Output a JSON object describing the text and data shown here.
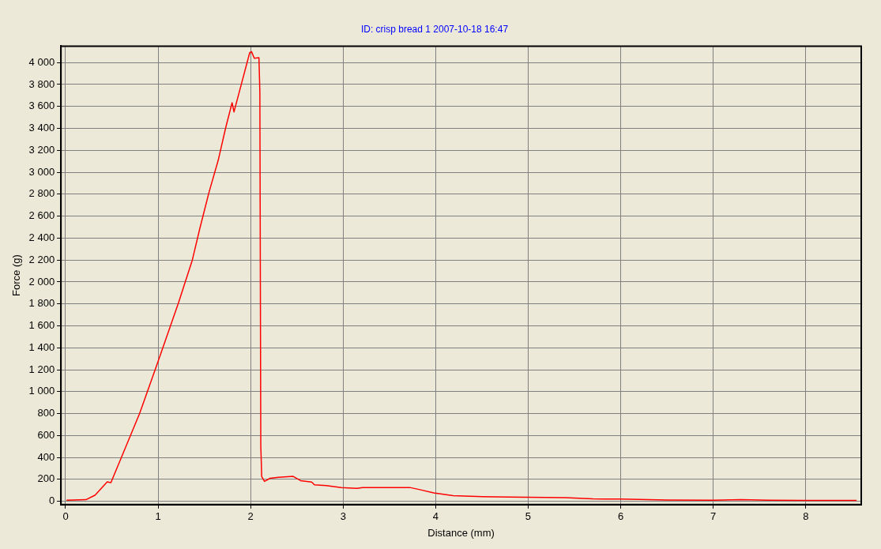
{
  "chart_data": {
    "type": "line",
    "title": "ID: crisp bread 1 2007-10-18 16:47",
    "xlabel": "Distance (mm)",
    "ylabel": "Force (g)",
    "series": [
      {
        "color": "#ff0000",
        "x": [
          0.01,
          0.22,
          0.32,
          0.45,
          0.49,
          0.6,
          0.8,
          1.0,
          1.22,
          1.37,
          1.45,
          1.55,
          1.65,
          1.73,
          1.8,
          1.82,
          1.88,
          1.99,
          2.01,
          2.04,
          2.09,
          2.1,
          2.11,
          2.12,
          2.15,
          2.21,
          2.3,
          2.46,
          2.54,
          2.66,
          2.69,
          2.82,
          2.98,
          3.15,
          3.21,
          3.72,
          3.82,
          3.98,
          4.19,
          4.51,
          4.8,
          5.4,
          5.7,
          6.0,
          6.5,
          7.0,
          7.3,
          7.6,
          8.0,
          8.55
        ],
        "values": [
          10,
          15,
          57,
          178,
          170,
          393,
          800,
          1275,
          1808,
          2200,
          2484,
          2816,
          3110,
          3404,
          3634,
          3550,
          3740,
          4090,
          4100,
          4040,
          4045,
          3727,
          507,
          225,
          182,
          210,
          219,
          227,
          189,
          176,
          151,
          143,
          126,
          118,
          126,
          126,
          108,
          76,
          51,
          43,
          38,
          33,
          22,
          20,
          12,
          10,
          15,
          10,
          8,
          8
        ]
      }
    ],
    "xlim": [
      -0.05,
      8.6
    ],
    "ylim": [
      -30,
      4150
    ],
    "xticks": [
      0,
      1,
      2,
      3,
      4,
      5,
      6,
      7,
      8
    ],
    "yticks": [
      0,
      200,
      400,
      600,
      800,
      {
        "value": 1000,
        "label": "1 000"
      },
      {
        "value": 1200,
        "label": "1 200"
      },
      {
        "value": 1400,
        "label": "1 400"
      },
      {
        "value": 1600,
        "label": "1 600"
      },
      {
        "value": 1800,
        "label": "1 800"
      },
      {
        "value": 2000,
        "label": "2 000"
      },
      {
        "value": 2200,
        "label": "2 200"
      },
      {
        "value": 2400,
        "label": "2 400"
      },
      {
        "value": 2600,
        "label": "2 600"
      },
      {
        "value": 2800,
        "label": "2 800"
      },
      {
        "value": 3000,
        "label": "3 000"
      },
      {
        "value": 3200,
        "label": "3 200"
      },
      {
        "value": 3400,
        "label": "3 400"
      },
      {
        "value": 3600,
        "label": "3 600"
      },
      {
        "value": 3800,
        "label": "3 800"
      },
      {
        "value": 4000,
        "label": "4 000"
      }
    ],
    "grid": true,
    "legend": false,
    "marker": "none",
    "line_style": "solid"
  }
}
